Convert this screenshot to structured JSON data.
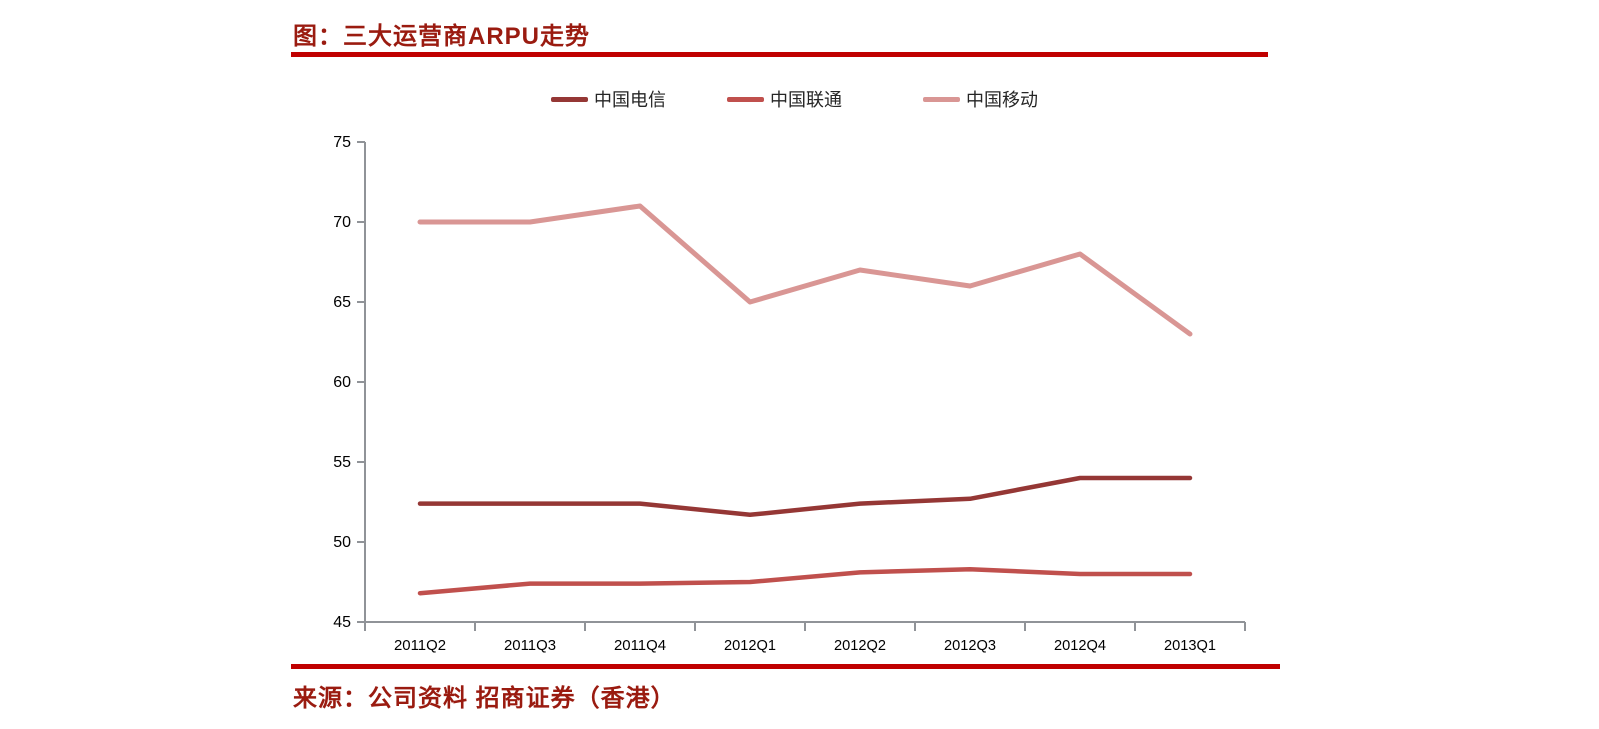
{
  "title": "图：三大运营商ARPU走势",
  "source": "来源：公司资料 招商证券（香港）",
  "colors": {
    "rule_red": "#C00000",
    "title_text": "#9A1B10",
    "axis_gray": "#909398",
    "tick_text": "#000000"
  },
  "chart_data": {
    "type": "line",
    "title": "三大运营商ARPU走势",
    "categories": [
      "2011Q2",
      "2011Q3",
      "2011Q4",
      "2012Q1",
      "2012Q2",
      "2012Q3",
      "2012Q4",
      "2013Q1"
    ],
    "series": [
      {
        "name": "中国电信",
        "color": "#953735",
        "stroke_width": 4.5,
        "values": [
          52.4,
          52.4,
          52.4,
          51.7,
          52.4,
          52.7,
          54.0,
          54.0
        ]
      },
      {
        "name": "中国联通",
        "color": "#C0504D",
        "stroke_width": 4.5,
        "values": [
          46.8,
          47.4,
          47.4,
          47.5,
          48.1,
          48.3,
          48.0,
          48.0
        ]
      },
      {
        "name": "中国移动",
        "color": "#D99694",
        "stroke_width": 5,
        "values": [
          70,
          70,
          71,
          65,
          67,
          66,
          68,
          63
        ]
      }
    ],
    "ylim": [
      45,
      75
    ],
    "ytick_step": 5,
    "yticks": [
      45,
      50,
      55,
      60,
      65,
      70,
      75
    ],
    "xlabel": "",
    "ylabel": "",
    "legend_position": "top",
    "grid": false
  }
}
